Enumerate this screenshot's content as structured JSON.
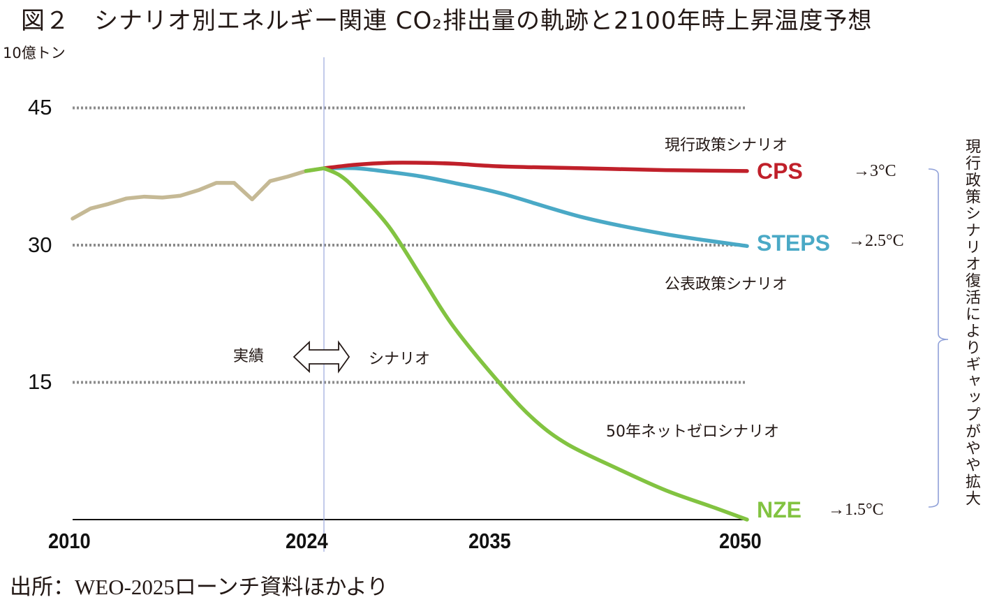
{
  "title": "図２　シナリオ別エネルギー関連 CO₂排出量の軌跡と2100年時上昇温度予想",
  "source": "出所：WEO-2025ローンチ資料ほかより",
  "side_note": "現行政策シナリオ復活によりギャップがやや拡大",
  "annotations": {
    "actual": "実績",
    "scenario": "シナリオ",
    "cps_name": "現行政策シナリオ",
    "steps_name": "公表政策シナリオ",
    "nze_name": "50年ネットゼロシナリオ"
  },
  "colors": {
    "history": "#c5b995",
    "cps": "#c0202a",
    "steps": "#4aa9c6",
    "nze": "#82c341",
    "grid": "#8c8c8c",
    "divider": "#9aa8dc",
    "bracket": "#8fa0d8"
  },
  "chart_data": {
    "type": "line",
    "title": "図２　シナリオ別エネルギー関連 CO₂排出量の軌跡と2100年時上昇温度予想",
    "ylabel": "10億トン",
    "xlabel": "",
    "ylim": [
      0,
      45
    ],
    "yticks": [
      15,
      30,
      45
    ],
    "ytick_labels": [
      "15",
      "30",
      "45"
    ],
    "xtick_labels": [
      "2010",
      "2024",
      "2035",
      "2050"
    ],
    "xticks": [
      2010,
      2024,
      2035,
      2050
    ],
    "grid": "dotted horizontal at 15, 30, 45",
    "divider_year": 2024,
    "series": [
      {
        "name": "実績",
        "key": "history",
        "x": [
          2010,
          2011,
          2012,
          2013,
          2014,
          2015,
          2016,
          2017,
          2018,
          2019,
          2020,
          2021,
          2022,
          2023,
          2024
        ],
        "values": [
          32.9,
          34.0,
          34.5,
          35.1,
          35.3,
          35.2,
          35.4,
          36.0,
          36.8,
          36.8,
          35.0,
          37.0,
          37.5,
          38.1,
          38.4
        ]
      },
      {
        "name": "CPS",
        "label": "CPS",
        "key": "cps",
        "temperature": "→3°C",
        "x": [
          2024,
          2026,
          2028,
          2030,
          2032,
          2035,
          2040,
          2045,
          2050
        ],
        "values": [
          38.4,
          38.8,
          39.0,
          39.0,
          38.9,
          38.6,
          38.4,
          38.2,
          38.1
        ]
      },
      {
        "name": "STEPS",
        "label": "STEPS",
        "key": "steps",
        "temperature": "→2.5°C",
        "x": [
          2024,
          2026,
          2028,
          2030,
          2032,
          2035,
          2040,
          2045,
          2050
        ],
        "values": [
          38.4,
          38.4,
          38.0,
          37.5,
          36.8,
          35.6,
          33.0,
          31.2,
          29.9
        ]
      },
      {
        "name": "NZE",
        "label": "NZE",
        "key": "nze",
        "temperature": "→1.5°C",
        "x": [
          2024,
          2025,
          2026,
          2028,
          2030,
          2032,
          2035,
          2037,
          2039,
          2042,
          2045,
          2048,
          2050
        ],
        "values": [
          38.4,
          37.6,
          36.0,
          32.0,
          26.5,
          21.0,
          14.5,
          10.8,
          8.2,
          5.6,
          3.2,
          1.3,
          0
        ]
      }
    ]
  }
}
